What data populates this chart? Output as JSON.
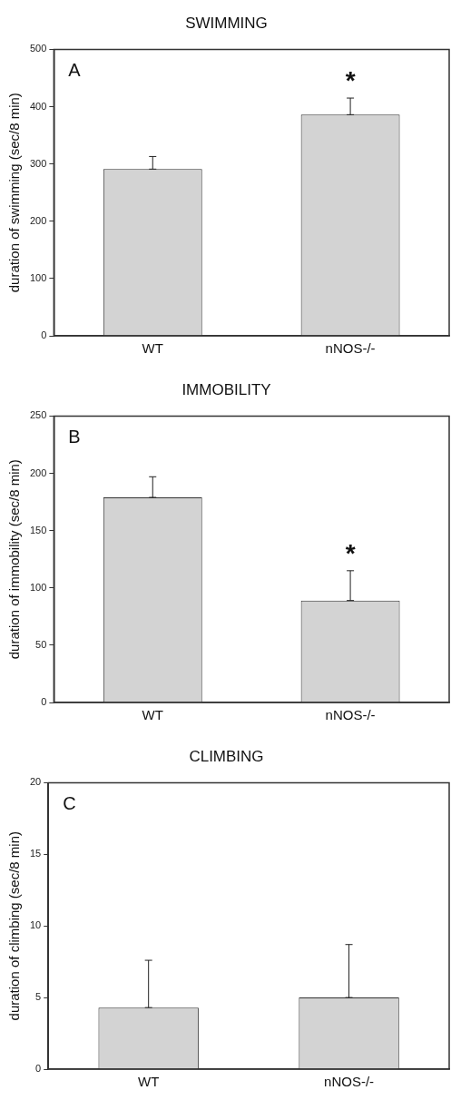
{
  "chart_data": [
    {
      "type": "bar",
      "title": "SWIMMING",
      "ylabel": "duration of swimming (sec/8 min)",
      "categories": [
        "WT",
        "nNOS-/-"
      ],
      "values": [
        291,
        386
      ],
      "color": "#d3d3d3",
      "errors": [
        [
          291,
          313
        ],
        [
          386,
          415
        ]
      ],
      "ylim": [
        0,
        500
      ],
      "yticks": [
        0,
        100,
        200,
        300,
        400,
        500
      ],
      "grid": false,
      "legend": false,
      "annotations": [
        "A",
        "*"
      ]
    },
    {
      "type": "bar",
      "title": "IMMOBILITY",
      "ylabel": "duration of immobility (sec/8 min)",
      "categories": [
        "WT",
        "nNOS-/-"
      ],
      "values": [
        179,
        89
      ],
      "color": "#d3d3d3",
      "errors": [
        [
          179,
          197
        ],
        [
          89,
          115
        ]
      ],
      "ylim": [
        0,
        250
      ],
      "yticks": [
        0,
        50,
        100,
        150,
        200,
        250
      ],
      "grid": false,
      "legend": false,
      "annotations": [
        "B",
        "*"
      ]
    },
    {
      "type": "bar",
      "title": "CLIMBING",
      "ylabel": "duration of climbing (sec/8 min)",
      "categories": [
        "WT",
        "nNOS-/-"
      ],
      "values": [
        4.3,
        5.0
      ],
      "color": "#d3d3d3",
      "errors": [
        [
          4.3,
          7.6
        ],
        [
          5.0,
          8.7
        ]
      ],
      "ylim": [
        0,
        20
      ],
      "yticks": [
        0,
        5,
        10,
        15,
        20
      ],
      "grid": false,
      "legend": false,
      "annotations": [
        "C"
      ]
    }
  ]
}
